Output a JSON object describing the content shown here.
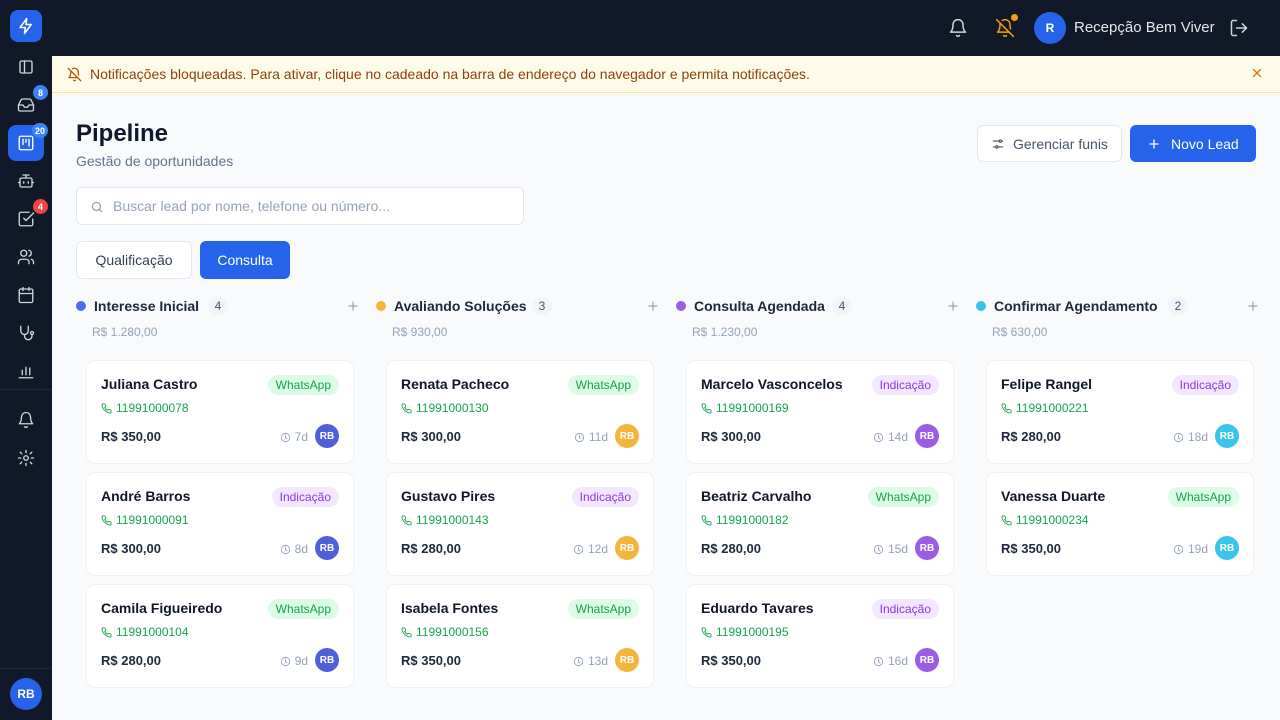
{
  "sidebar": {
    "items": [
      {
        "name": "collapse",
        "icon": "sidebar-toggle-icon",
        "top": 0
      },
      {
        "name": "inbox",
        "icon": "inbox-icon",
        "badge": "8",
        "badge_color": "blue"
      },
      {
        "name": "pipeline",
        "icon": "kanban-icon",
        "badge": "20",
        "badge_color": "blue",
        "active": true
      },
      {
        "name": "bots",
        "icon": "bot-icon"
      },
      {
        "name": "tasks",
        "icon": "check-square-icon",
        "badge": "4",
        "badge_color": "red"
      },
      {
        "name": "contacts",
        "icon": "users-icon"
      },
      {
        "name": "calendar",
        "icon": "calendar-icon"
      },
      {
        "name": "clinic",
        "icon": "stethoscope-icon"
      },
      {
        "name": "reports",
        "icon": "bar-chart-icon"
      },
      {
        "name": "notifications",
        "icon": "bell-icon"
      },
      {
        "name": "settings",
        "icon": "gear-icon"
      }
    ],
    "avatar_initials": "RB"
  },
  "topbar": {
    "user_initial": "R",
    "user_name": "Recepção Bem Viver"
  },
  "banner": {
    "text": "Notificações bloqueadas. Para ativar, clique no cadeado na barra de endereço do navegador e permita notificações."
  },
  "header": {
    "title": "Pipeline",
    "subtitle": "Gestão de oportunidades",
    "manage_label": "Gerenciar funis",
    "new_lead_label": "Novo Lead"
  },
  "search": {
    "placeholder": "Buscar lead por nome, telefone ou número..."
  },
  "funnels": [
    {
      "label": "Qualificação",
      "active": false
    },
    {
      "label": "Consulta",
      "active": true
    }
  ],
  "colors": {
    "primary": "#2563eb",
    "whatsapp": "#16a34a",
    "indicacao": "#9333ea"
  },
  "columns": [
    {
      "title": "Interesse Inicial",
      "count": "4",
      "total": "R$ 1.280,00",
      "dot_color": "#4f6bed",
      "avatar_color": "#4f5fd9",
      "cards": [
        {
          "name": "Juliana Castro",
          "tag": "WhatsApp",
          "phone": "11991000078",
          "value": "R$ 350,00",
          "age": "7d",
          "initials": "RB"
        },
        {
          "name": "André Barros",
          "tag": "Indicação",
          "phone": "11991000091",
          "value": "R$ 300,00",
          "age": "8d",
          "initials": "RB"
        },
        {
          "name": "Camila Figueiredo",
          "tag": "WhatsApp",
          "phone": "11991000104",
          "value": "R$ 280,00",
          "age": "9d",
          "initials": "RB"
        }
      ]
    },
    {
      "title": "Avaliando Soluções",
      "count": "3",
      "total": "R$ 930,00",
      "dot_color": "#f5b53d",
      "avatar_color": "#f5b53d",
      "cards": [
        {
          "name": "Renata Pacheco",
          "tag": "WhatsApp",
          "phone": "11991000130",
          "value": "R$ 300,00",
          "age": "11d",
          "initials": "RB"
        },
        {
          "name": "Gustavo Pires",
          "tag": "Indicação",
          "phone": "11991000143",
          "value": "R$ 280,00",
          "age": "12d",
          "initials": "RB"
        },
        {
          "name": "Isabela Fontes",
          "tag": "WhatsApp",
          "phone": "11991000156",
          "value": "R$ 350,00",
          "age": "13d",
          "initials": "RB"
        }
      ]
    },
    {
      "title": "Consulta Agendada",
      "count": "4",
      "total": "R$ 1.230,00",
      "dot_color": "#9b5de5",
      "avatar_color": "#9b5de5",
      "cards": [
        {
          "name": "Marcelo Vasconcelos",
          "tag": "Indicação",
          "phone": "11991000169",
          "value": "R$ 300,00",
          "age": "14d",
          "initials": "RB"
        },
        {
          "name": "Beatriz Carvalho",
          "tag": "WhatsApp",
          "phone": "11991000182",
          "value": "R$ 280,00",
          "age": "15d",
          "initials": "RB"
        },
        {
          "name": "Eduardo Tavares",
          "tag": "Indicação",
          "phone": "11991000195",
          "value": "R$ 350,00",
          "age": "16d",
          "initials": "RB"
        }
      ]
    },
    {
      "title": "Confirmar Agendamento",
      "count": "2",
      "total": "R$ 630,00",
      "dot_color": "#38c5e8",
      "avatar_color": "#38c5e8",
      "cards": [
        {
          "name": "Felipe Rangel",
          "tag": "Indicação",
          "phone": "11991000221",
          "value": "R$ 280,00",
          "age": "18d",
          "initials": "RB"
        },
        {
          "name": "Vanessa Duarte",
          "tag": "WhatsApp",
          "phone": "11991000234",
          "value": "R$ 350,00",
          "age": "19d",
          "initials": "RB"
        }
      ]
    }
  ]
}
